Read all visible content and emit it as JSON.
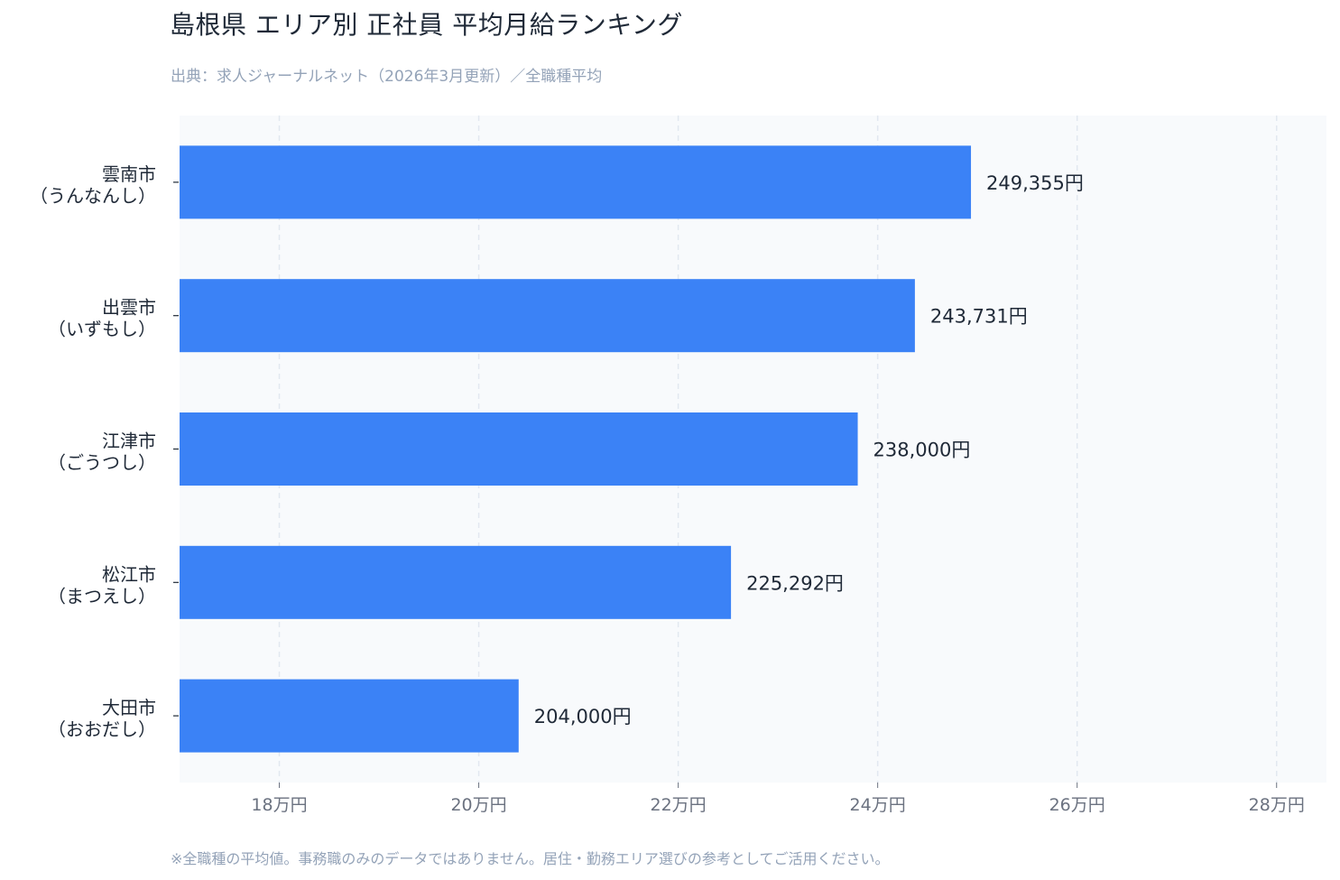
{
  "title": "島根県 エリア別 正社員 平均月給ランキング",
  "subtitle": "出典：求人ジャーナルネット（2026年3月更新）／全職種平均",
  "footnote": "※全職種の平均値。事務職のみのデータではありません。居住・勤務エリア選びの参考としてご活用ください。",
  "colors": {
    "bar": "#3b82f6",
    "plot_background": "#f8fafc",
    "grid": "#e2e8f0"
  },
  "chart_data": {
    "type": "bar",
    "orientation": "horizontal",
    "categories": [
      [
        "雲南市",
        "（うんなんし）"
      ],
      [
        "出雲市",
        "（いずもし）"
      ],
      [
        "江津市",
        "（ごうつし）"
      ],
      [
        "松江市",
        "（まつえし）"
      ],
      [
        "大田市",
        "（おおだし）"
      ]
    ],
    "values": [
      249355,
      243731,
      238000,
      225292,
      204000
    ],
    "value_labels": [
      "249,355円",
      "243,731円",
      "238,000円",
      "225,292円",
      "204,000円"
    ],
    "xlim": [
      170000,
      285000
    ],
    "xticks": [
      180000,
      200000,
      220000,
      240000,
      260000,
      280000
    ],
    "xtick_labels": [
      "18万円",
      "20万円",
      "22万円",
      "24万円",
      "26万円",
      "28万円"
    ],
    "grid": "vertical dashed",
    "legend": "none"
  }
}
